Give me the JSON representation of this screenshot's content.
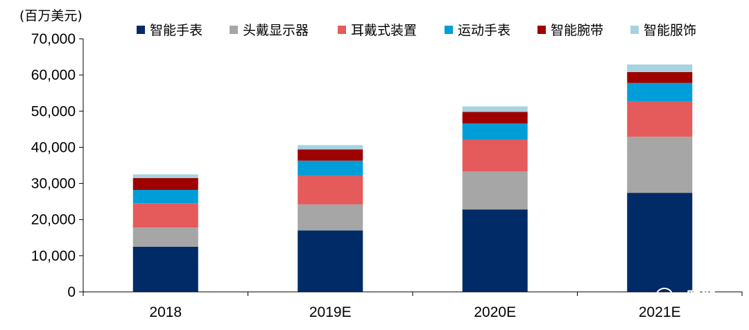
{
  "chart_data": {
    "type": "bar",
    "stacked": true,
    "unit_label": "(百万美元)",
    "title": "",
    "xlabel": "",
    "ylabel": "",
    "ylim": [
      0,
      70000
    ],
    "yticks": [
      0,
      10000,
      20000,
      30000,
      40000,
      50000,
      60000,
      70000
    ],
    "ytick_labels": [
      "0",
      "10,000",
      "20,000",
      "30,000",
      "40,000",
      "50,000",
      "60,000",
      "70,000"
    ],
    "grid": false,
    "legend_position": "top",
    "categories": [
      "2018",
      "2019E",
      "2020E",
      "2021E"
    ],
    "series": [
      {
        "name": "智能手表",
        "color": "#002b66",
        "values": [
          12500,
          17000,
          22800,
          27400
        ]
      },
      {
        "name": "头戴显示器",
        "color": "#a6a6a6",
        "values": [
          5300,
          7200,
          10500,
          15500
        ]
      },
      {
        "name": "耳戴式装置",
        "color": "#e55a5a",
        "values": [
          6700,
          7900,
          8800,
          9700
        ]
      },
      {
        "name": "运动手表",
        "color": "#009ed8",
        "values": [
          3700,
          4200,
          4500,
          5200
        ]
      },
      {
        "name": "智能腕带",
        "color": "#9e0000",
        "values": [
          3300,
          3100,
          3200,
          3000
        ]
      },
      {
        "name": "智能服饰",
        "color": "#a8d2e0",
        "values": [
          1000,
          1200,
          1500,
          2100
        ]
      }
    ]
  },
  "watermark": {
    "text": "跑迎",
    "icon": "wechat-icon"
  }
}
